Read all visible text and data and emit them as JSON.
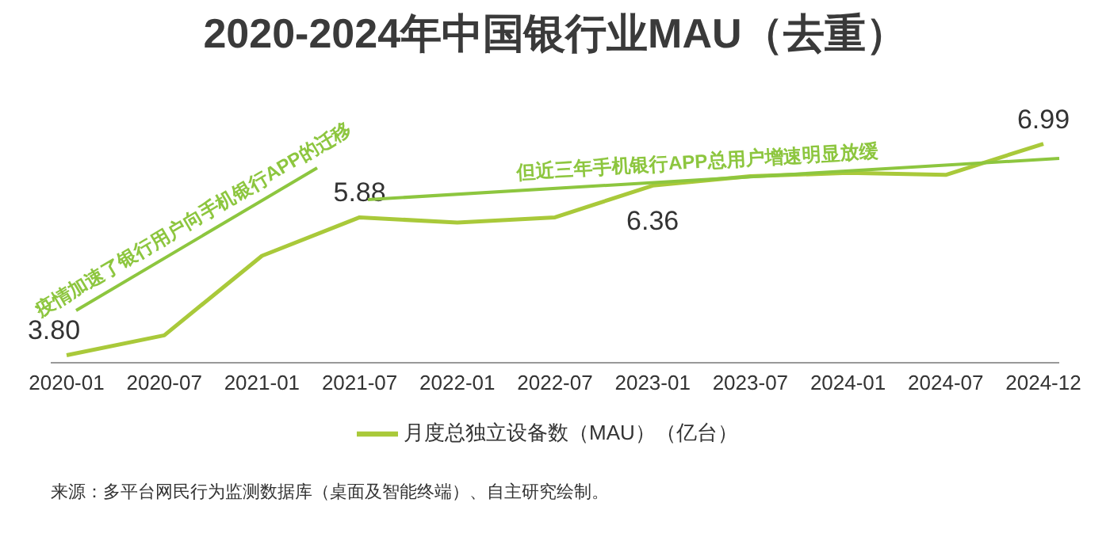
{
  "chart_data": {
    "type": "line",
    "title": "2020-2024年中国银行业MAU（去重）",
    "categories": [
      "2020-01",
      "2020-07",
      "2021-01",
      "2021-07",
      "2022-01",
      "2022-07",
      "2023-01",
      "2023-07",
      "2024-01",
      "2024-07",
      "2024-12"
    ],
    "series": [
      {
        "name": "月度总独立设备数（MAU）（亿台）",
        "color": "#a9c93a",
        "values": [
          3.8,
          4.1,
          5.3,
          5.88,
          5.8,
          5.88,
          6.36,
          6.5,
          6.55,
          6.52,
          6.99
        ],
        "value_labels": [
          "3.80",
          null,
          null,
          "5.88",
          null,
          null,
          "6.36",
          null,
          null,
          null,
          "6.99"
        ]
      }
    ],
    "annotations": [
      "疫情加速了银行用户向手机银行APP的迁移",
      "但近三年手机银行APP总用户增速明显放缓",
      "来源：多平台网民行为监测数据库（桌面及智能终端）、自主研究绘制。"
    ],
    "legend": "bottom",
    "grid": false,
    "marker": "none",
    "line_style": "solid"
  }
}
